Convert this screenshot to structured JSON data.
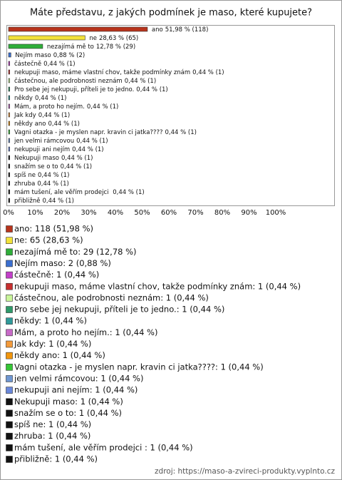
{
  "chart_data": {
    "type": "bar",
    "orientation": "horizontal",
    "title": "Máte představu, z jakých podmínek je maso, které kupujete?",
    "categories": [
      "ano",
      "ne",
      "nezajímá mě to",
      "Nejím maso",
      "částečně",
      "nekupuji maso, máme vlastní chov, takže podmínky znám",
      "částečnou, ale podrobnosti neznám",
      "Pro sebe jej nekupuji, příteli je to jedno.",
      "někdy",
      "Mám, a proto ho nejím.",
      "Jak kdy",
      "někdy ano",
      "Vagni otazka - je myslen napr. kravin ci jatka????",
      "jen velmi rámcovou",
      "nekupuji ani nejím",
      "Nekupuji maso",
      "snažím se o to",
      "spíš ne",
      "zhruba",
      "mám tušení, ale věřím prodejci ",
      "přibližně"
    ],
    "values": [
      51.98,
      28.63,
      12.78,
      0.88,
      0.44,
      0.44,
      0.44,
      0.44,
      0.44,
      0.44,
      0.44,
      0.44,
      0.44,
      0.44,
      0.44,
      0.44,
      0.44,
      0.44,
      0.44,
      0.44,
      0.44
    ],
    "value_labels": [
      "51,98 % (118)",
      "28,63 % (65)",
      "12,78 % (29)",
      "0,88 % (2)",
      "0,44 % (1)",
      "0,44 % (1)",
      "0,44 % (1)",
      "0,44 % (1)",
      "0,44 % (1)",
      "0,44 % (1)",
      "0,44 % (1)",
      "0,44 % (1)",
      "0,44 % (1)",
      "0,44 % (1)",
      "0,44 % (1)",
      "0,44 % (1)",
      "0,44 % (1)",
      "0,44 % (1)",
      "0,44 % (1)",
      "0,44 % (1)",
      "0,44 % (1)"
    ],
    "colors": [
      "#b8341c",
      "#f2e23a",
      "#2fae3a",
      "#3a6fd0",
      "#c33fc9",
      "#c83030",
      "#c9f59a",
      "#2e9a6a",
      "#2f9a9a",
      "#c86ac8",
      "#f39a3a",
      "#f2960c",
      "#35c535",
      "#6f97d2",
      "#6a88dc",
      "#111111",
      "#111111",
      "#111111",
      "#111111",
      "#111111",
      "#111111"
    ],
    "legend": [
      "ano: 118 (51,98 %)",
      "ne: 65 (28,63 %)",
      "nezajímá mě to: 29 (12,78 %)",
      "Nejím maso: 2 (0,88 %)",
      "částečně: 1 (0,44 %)",
      "nekupuji maso, máme vlastní chov, takže podmínky znám: 1 (0,44 %)",
      "částečnou, ale podrobnosti neznám: 1 (0,44 %)",
      "Pro sebe jej nekupuji, příteli je to jedno.: 1 (0,44 %)",
      "někdy: 1 (0,44 %)",
      "Mám, a proto ho nejím.: 1 (0,44 %)",
      "Jak kdy: 1 (0,44 %)",
      "někdy ano: 1 (0,44 %)",
      "Vagni otazka - je myslen napr. kravin ci jatka????: 1 (0,44 %)",
      "jen velmi rámcovou: 1 (0,44 %)",
      "nekupuji ani nejím: 1 (0,44 %)",
      "Nekupuji maso: 1 (0,44 %)",
      "snažím se o to: 1 (0,44 %)",
      "spíš ne: 1 (0,44 %)",
      "zhruba: 1 (0,44 %)",
      "mám tušení, ale věřím prodejci : 1 (0,44 %)",
      "přibližně: 1 (0,44 %)"
    ],
    "xlim": [
      0,
      100
    ],
    "xticks": [
      {
        "value": 0,
        "label": "0%"
      },
      {
        "value": 10,
        "label": "10%"
      },
      {
        "value": 20,
        "label": "20%"
      },
      {
        "value": 30,
        "label": "30%"
      },
      {
        "value": 40,
        "label": "40%"
      },
      {
        "value": 50,
        "label": "50%"
      },
      {
        "value": 60,
        "label": "60%"
      },
      {
        "value": 70,
        "label": "70%"
      },
      {
        "value": 80,
        "label": "80%"
      },
      {
        "value": 90,
        "label": "90%"
      },
      {
        "value": 100,
        "label": "100%"
      }
    ],
    "source": "zdroj: https://maso-a-zvireci-produkty.vyplnto.cz"
  }
}
